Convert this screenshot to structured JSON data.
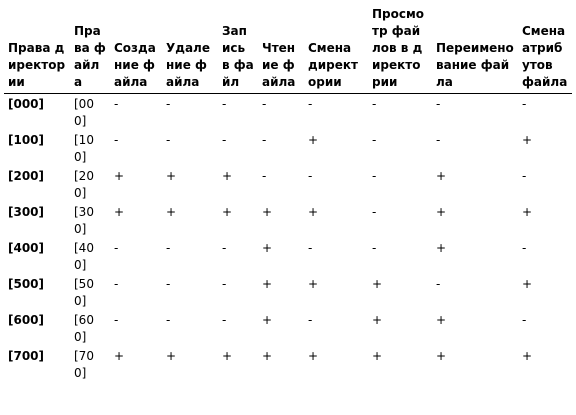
{
  "columns": [
    "Права директории",
    "Права файла",
    "Создание файла",
    "Удаление файла",
    "Запись в файл",
    "Чтение файла",
    "Смена директории",
    "Просмотр файлов в директории",
    "Переименование файла",
    "Смена атрибутов файла"
  ],
  "rows": [
    [
      "[000]",
      "[000]",
      "-",
      "-",
      "-",
      "-",
      "-",
      "-",
      "-",
      "-"
    ],
    [
      "[100]",
      "[100]",
      "-",
      "-",
      "-",
      "-",
      "+",
      "-",
      "-",
      "+"
    ],
    [
      "[200]",
      "[200]",
      "+",
      "+",
      "+",
      "-",
      "-",
      "-",
      "+",
      "-"
    ],
    [
      "[300]",
      "[300]",
      "+",
      "+",
      "+",
      "+",
      "+",
      "-",
      "+",
      "+"
    ],
    [
      "[400]",
      "[400]",
      "-",
      "-",
      "-",
      "+",
      "-",
      "-",
      "+",
      "-"
    ],
    [
      "[500]",
      "[500]",
      "-",
      "-",
      "-",
      "+",
      "+",
      "+",
      "-",
      "+"
    ],
    [
      "[600]",
      "[600]",
      "-",
      "-",
      "-",
      "+",
      "-",
      "+",
      "+",
      "-"
    ],
    [
      "[700]",
      "[700]",
      "+",
      "+",
      "+",
      "+",
      "+",
      "+",
      "+",
      "+"
    ]
  ]
}
